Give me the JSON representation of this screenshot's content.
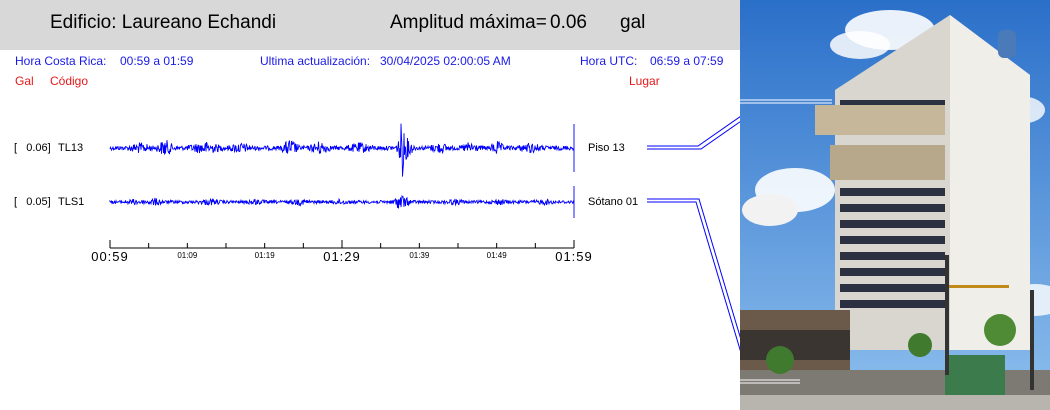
{
  "header": {
    "building": "Edificio: Laureano Echandi",
    "amplitude_label": "Amplitud máxima=",
    "amplitude_value": "0.06",
    "amplitude_unit": "gal"
  },
  "info": {
    "local_label": "Hora Costa Rica:",
    "local_range": "00:59 a 01:59",
    "update_label": "Ultima actualización:",
    "update_value": "30/04/2025 02:00:05 AM",
    "utc_label": "Hora UTC:",
    "utc_range": "06:59 a 07:59"
  },
  "columns": {
    "gal": "Gal",
    "code": "Código",
    "place": "Lugar"
  },
  "channels": [
    {
      "gal": "[   0.06]",
      "code": "TL13",
      "place": "Piso 13",
      "color": "#0000ff"
    },
    {
      "gal": "[   0.05]",
      "code": "TLS1",
      "place": "Sótano 01",
      "color": "#0000ff"
    }
  ],
  "time_axis": {
    "ticks": [
      "00:59",
      "01:09",
      "01:19",
      "01:29",
      "01:39",
      "01:49",
      "01:59"
    ],
    "major_ticks": [
      0,
      3,
      6
    ]
  },
  "colors": {
    "trace": "#0000ff",
    "info_text": "#1a1ae6",
    "column_header": "#e61919",
    "header_bg": "#d8d8d8"
  }
}
